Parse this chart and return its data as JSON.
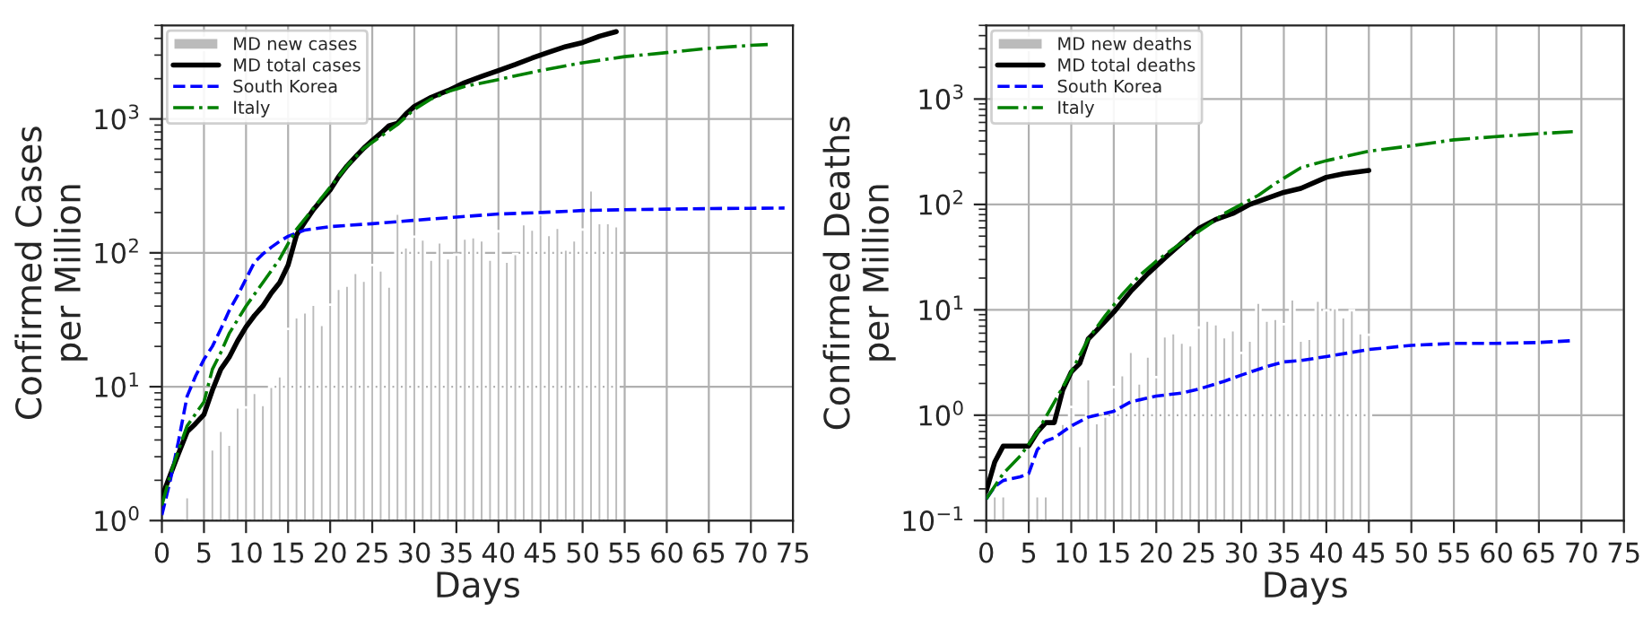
{
  "chart_data": [
    {
      "type": "line",
      "xlabel": "Days",
      "ylabel": "Confirmed Cases\nper Million",
      "log": "y",
      "grid": true,
      "legend": "top left",
      "marker": "none",
      "xlim": [
        0,
        75
      ],
      "xticks": [
        0,
        5,
        10,
        15,
        20,
        25,
        30,
        35,
        40,
        45,
        50,
        55,
        60,
        65,
        70,
        75
      ],
      "ylim": [
        1,
        5000
      ],
      "yticks": [
        {
          "value": 1,
          "label": "10$^{0}$"
        },
        {
          "value": 10,
          "label": "10$^{1}$"
        },
        {
          "value": 100,
          "label": "10$^{2}$"
        },
        {
          "value": 1000,
          "label": "10$^{3}$"
        }
      ],
      "series": [
        {
          "name": "MD new cases",
          "type": "bar",
          "color": "#bbbbbb",
          "x": [
            3,
            6,
            7,
            8,
            9,
            10,
            11,
            12,
            13,
            14,
            15,
            16,
            17,
            18,
            19,
            20,
            21,
            22,
            23,
            24,
            25,
            26,
            27,
            28,
            29,
            30,
            31,
            32,
            33,
            34,
            35,
            36,
            37,
            38,
            39,
            40,
            41,
            42,
            43,
            44,
            45,
            46,
            47,
            48,
            49,
            50,
            51,
            52,
            53,
            54
          ],
          "values": [
            1.5,
            3.4,
            4.7,
            3.7,
            7.0,
            7.0,
            9.0,
            7.3,
            10,
            12,
            27,
            33,
            36,
            41,
            29,
            41,
            54,
            57,
            71,
            62,
            81,
            74,
            56,
            196,
            110,
            132,
            126,
            89,
            120,
            91,
            97,
            128,
            131,
            124,
            89,
            145,
            86,
            98,
            164,
            149,
            193,
            136,
            154,
            106,
            124,
            149,
            293,
            167,
            167,
            158
          ]
        },
        {
          "name": "MD total cases",
          "line_style": "solid",
          "color": "#000000",
          "x": [
            0,
            1,
            2,
            3,
            4,
            5,
            6,
            7,
            8,
            9,
            10,
            11,
            12,
            13,
            14,
            15,
            16,
            17,
            18,
            19,
            20,
            21,
            22,
            23,
            24,
            25,
            26,
            27,
            28,
            29,
            30,
            32,
            34,
            36,
            38,
            40,
            42,
            44,
            46,
            48,
            50,
            52,
            54
          ],
          "values": [
            1.5,
            2.2,
            3.2,
            4.6,
            5.3,
            6.2,
            9.4,
            13.5,
            16.6,
            22,
            28,
            34,
            40,
            50,
            60,
            81,
            136,
            170,
            210,
            250,
            295,
            370,
            445,
            520,
            605,
            690,
            780,
            890,
            930,
            1090,
            1240,
            1450,
            1630,
            1870,
            2080,
            2300,
            2550,
            2850,
            3150,
            3470,
            3720,
            4150,
            4490
          ]
        },
        {
          "name": "South Korea",
          "line_style": "dashed",
          "color": "#0000ff",
          "x": [
            0,
            1,
            2,
            3,
            4,
            5,
            6,
            7,
            8,
            9,
            10,
            11,
            12,
            13,
            14,
            15,
            17,
            20,
            25,
            30,
            35,
            40,
            45,
            50,
            55,
            60,
            65,
            70,
            74
          ],
          "values": [
            1.1,
            2.0,
            4.0,
            8.5,
            12,
            16,
            20,
            27,
            37,
            48,
            64,
            85,
            98,
            110,
            122,
            133,
            148,
            157,
            165,
            175,
            185,
            195,
            200,
            207,
            210,
            212,
            214,
            215,
            216
          ]
        },
        {
          "name": "Italy",
          "line_style": "dashdot",
          "color": "#008000",
          "x": [
            0,
            1,
            2,
            3,
            5,
            6,
            7,
            8,
            10,
            12,
            14,
            15,
            16,
            18,
            20,
            22,
            24,
            26,
            28,
            30,
            32,
            34,
            36,
            40,
            45,
            50,
            55,
            60,
            65,
            70,
            72
          ],
          "values": [
            1.3,
            2.2,
            3.4,
            5.1,
            7.7,
            13.5,
            18,
            25,
            40,
            60,
            90,
            117,
            150,
            215,
            310,
            445,
            605,
            740,
            910,
            1180,
            1410,
            1600,
            1750,
            1970,
            2300,
            2630,
            2920,
            3130,
            3370,
            3550,
            3600
          ]
        }
      ]
    },
    {
      "type": "line",
      "xlabel": "Days",
      "ylabel": "Confirmed Deaths\nper Million",
      "log": "y",
      "grid": true,
      "legend": "top left",
      "marker": "none",
      "xlim": [
        0,
        75
      ],
      "xticks": [
        0,
        5,
        10,
        15,
        20,
        25,
        30,
        35,
        40,
        45,
        50,
        55,
        60,
        65,
        70,
        75
      ],
      "ylim": [
        0.1,
        5000
      ],
      "yticks": [
        {
          "value": 0.1,
          "label": "10$^{−1}$"
        },
        {
          "value": 1,
          "label": "10$^{0}$"
        },
        {
          "value": 10,
          "label": "10$^{1}$"
        },
        {
          "value": 100,
          "label": "10$^{2}$"
        },
        {
          "value": 1000,
          "label": "10$^{3}$"
        }
      ],
      "series": [
        {
          "name": "MD new deaths",
          "type": "bar",
          "color": "#bbbbbb",
          "x": [
            1,
            2,
            6,
            7,
            9,
            10,
            11,
            12,
            13,
            14,
            15,
            16,
            17,
            18,
            19,
            20,
            21,
            22,
            23,
            24,
            25,
            26,
            27,
            28,
            29,
            30,
            31,
            32,
            33,
            34,
            35,
            36,
            37,
            38,
            39,
            40,
            41,
            42,
            43,
            44,
            45
          ],
          "values": [
            0.17,
            0.17,
            0.17,
            0.17,
            0.83,
            1.2,
            0.51,
            2.2,
            0.84,
            0.97,
            1.85,
            2.4,
            4.0,
            2.0,
            3.6,
            2.3,
            5.6,
            6.0,
            4.9,
            4.6,
            6.8,
            7.9,
            7.3,
            5.5,
            6.4,
            3.9,
            5.1,
            11.7,
            7.9,
            8.2,
            7.3,
            12.6,
            5.1,
            5.3,
            12.2,
            9.9,
            10.4,
            8.5,
            9.9,
            6.0,
            5.8
          ]
        },
        {
          "name": "MD total deaths",
          "line_style": "solid",
          "color": "#000000",
          "x": [
            0,
            1,
            2,
            3,
            4,
            5,
            6,
            7,
            8,
            9,
            10,
            11,
            12,
            13,
            15,
            17,
            19,
            21,
            23,
            25,
            27,
            29,
            31,
            33,
            35,
            37,
            40,
            42,
            45
          ],
          "values": [
            0.19,
            0.36,
            0.51,
            0.51,
            0.51,
            0.51,
            0.69,
            0.85,
            0.85,
            1.73,
            2.57,
            3.1,
            5.3,
            6.4,
            9.5,
            15,
            22,
            31,
            43,
            59,
            72,
            82,
            100,
            114,
            130,
            142,
            181,
            195,
            210
          ]
        },
        {
          "name": "South Korea",
          "line_style": "dashed",
          "color": "#0000ff",
          "x": [
            0,
            1,
            2,
            4,
            5,
            6,
            7,
            8,
            10,
            12,
            15,
            17,
            20,
            23,
            25,
            28,
            30,
            33,
            35,
            37,
            40,
            45,
            50,
            55,
            60,
            65,
            69
          ],
          "values": [
            0.16,
            0.21,
            0.24,
            0.26,
            0.28,
            0.47,
            0.57,
            0.61,
            0.79,
            0.96,
            1.09,
            1.34,
            1.52,
            1.62,
            1.77,
            2.1,
            2.4,
            2.9,
            3.2,
            3.3,
            3.6,
            4.2,
            4.6,
            4.8,
            4.8,
            4.9,
            5.1
          ]
        },
        {
          "name": "Italy",
          "line_style": "dashdot",
          "color": "#008000",
          "x": [
            0,
            2,
            4,
            6,
            8,
            10,
            12,
            14,
            16,
            18,
            20,
            22,
            24,
            26,
            28,
            30,
            32,
            34,
            37,
            40,
            45,
            50,
            55,
            60,
            65,
            69
          ],
          "values": [
            0.16,
            0.28,
            0.41,
            0.69,
            1.33,
            2.57,
            5.3,
            8.8,
            14,
            21,
            29,
            38,
            49,
            63,
            82,
            100,
            122,
            158,
            223,
            260,
            320,
            360,
            410,
            440,
            470,
            490
          ]
        }
      ]
    }
  ]
}
